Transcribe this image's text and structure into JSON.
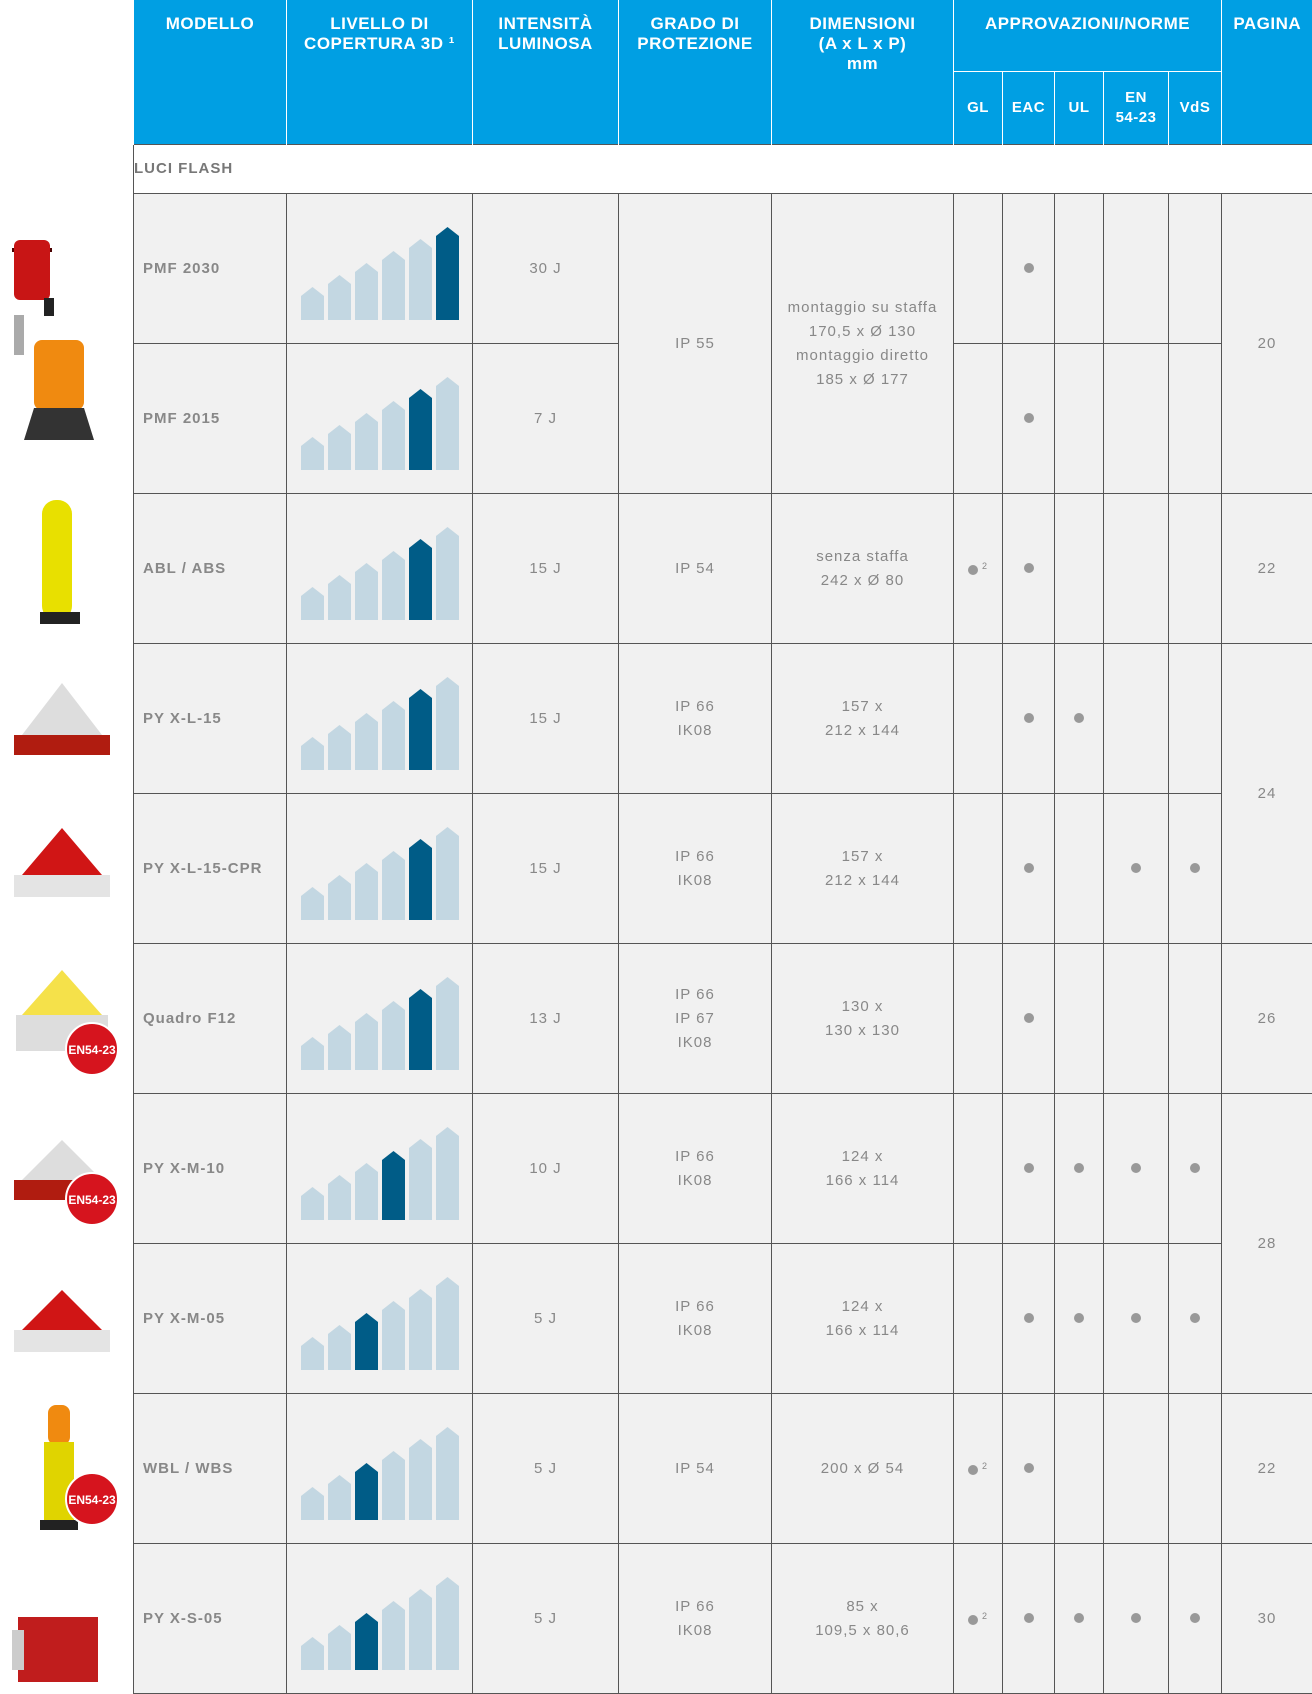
{
  "header": {
    "modello": [
      "MODELLO"
    ],
    "livello": [
      "LIVELLO DI",
      "COPERTURA 3D ¹"
    ],
    "intensita": [
      "INTENSITÀ",
      "LUMINOSA"
    ],
    "protezione": [
      "GRADO DI",
      "PROTEZIONE"
    ],
    "dimensioni": [
      "DIMENSIONI",
      "(A x L x P)",
      "mm"
    ],
    "approvazioni": [
      "APPROVAZIONI/NORME"
    ],
    "norme": [
      [
        "GL"
      ],
      [
        "EAC"
      ],
      [
        "UL"
      ],
      [
        "EN",
        "54-23"
      ],
      [
        "VdS"
      ]
    ],
    "pagina": [
      "PAGINA"
    ]
  },
  "section": "LUCI FLASH",
  "rows": [
    {
      "model": "PMF 2030",
      "level": 6,
      "intensity": "30 J",
      "protection": {
        "lines": [
          "IP 55"
        ],
        "span": 2
      },
      "dimensions": {
        "lines": [
          "montaggio su staffa",
          "170,5 x Ø 130",
          "montaggio diretto",
          "185 x Ø 177"
        ],
        "span": 2
      },
      "approvals": [
        false,
        true,
        false,
        false,
        false
      ],
      "page": {
        "text": "20",
        "span": 2
      }
    },
    {
      "model": "PMF 2015",
      "level": 5,
      "intensity": "7 J",
      "approvals": [
        false,
        true,
        false,
        false,
        false
      ]
    },
    {
      "model": "ABL / ABS",
      "level": 5,
      "intensity": "15 J",
      "protection": {
        "lines": [
          "IP 54"
        ],
        "span": 1
      },
      "dimensions": {
        "lines": [
          "senza staffa",
          "242 x Ø 80"
        ],
        "span": 1
      },
      "approvals": [
        true,
        true,
        false,
        false,
        false
      ],
      "gl_note": "2",
      "page": {
        "text": "22",
        "span": 1
      }
    },
    {
      "model": "PY X-L-15",
      "level": 5,
      "intensity": "15 J",
      "protection": {
        "lines": [
          "IP 66",
          "IK08"
        ],
        "span": 1
      },
      "dimensions": {
        "lines": [
          "157 x",
          "212 x 144"
        ],
        "span": 1
      },
      "approvals": [
        false,
        true,
        true,
        false,
        false
      ],
      "page": {
        "text": "24",
        "span": 2
      }
    },
    {
      "model": "PY X-L-15-CPR",
      "level": 5,
      "intensity": "15 J",
      "protection": {
        "lines": [
          "IP 66",
          "IK08"
        ],
        "span": 1
      },
      "dimensions": {
        "lines": [
          "157 x",
          "212 x 144"
        ],
        "span": 1
      },
      "approvals": [
        false,
        true,
        false,
        true,
        true
      ]
    },
    {
      "model": "Quadro F12",
      "level": 5,
      "intensity": "13 J",
      "protection": {
        "lines": [
          "IP 66",
          "IP 67",
          "IK08"
        ],
        "span": 1
      },
      "dimensions": {
        "lines": [
          "130 x",
          "130 x 130"
        ],
        "span": 1
      },
      "approvals": [
        false,
        true,
        false,
        false,
        false
      ],
      "page": {
        "text": "26",
        "span": 1
      }
    },
    {
      "model": "PY X-M-10",
      "level": 4,
      "intensity": "10 J",
      "protection": {
        "lines": [
          "IP 66",
          "IK08"
        ],
        "span": 1
      },
      "dimensions": {
        "lines": [
          "124 x",
          "166 x 114"
        ],
        "span": 1
      },
      "approvals": [
        false,
        true,
        true,
        true,
        true
      ],
      "page": {
        "text": "28",
        "span": 2
      },
      "badge": "EN54-23"
    },
    {
      "model": "PY X-M-05",
      "level": 3,
      "intensity": "5 J",
      "protection": {
        "lines": [
          "IP 66",
          "IK08"
        ],
        "span": 1
      },
      "dimensions": {
        "lines": [
          "124 x",
          "166 x 114"
        ],
        "span": 1
      },
      "approvals": [
        false,
        true,
        true,
        true,
        true
      ],
      "badge": "EN54-23"
    },
    {
      "model": "WBL / WBS",
      "level": 3,
      "intensity": "5 J",
      "protection": {
        "lines": [
          "IP 54"
        ],
        "span": 1
      },
      "dimensions": {
        "lines": [
          "200 x Ø 54"
        ],
        "span": 1
      },
      "approvals": [
        true,
        true,
        false,
        false,
        false
      ],
      "gl_note": "2",
      "page": {
        "text": "22",
        "span": 1
      }
    },
    {
      "model": "PY X-S-05",
      "level": 3,
      "intensity": "5 J",
      "protection": {
        "lines": [
          "IP 66",
          "IK08"
        ],
        "span": 1
      },
      "dimensions": {
        "lines": [
          "85 x",
          "109,5 x 80,6"
        ],
        "span": 1
      },
      "approvals": [
        true,
        true,
        true,
        true,
        true
      ],
      "gl_note": "2",
      "page": {
        "text": "30",
        "span": 1
      },
      "badge": "EN54-23"
    }
  ]
}
